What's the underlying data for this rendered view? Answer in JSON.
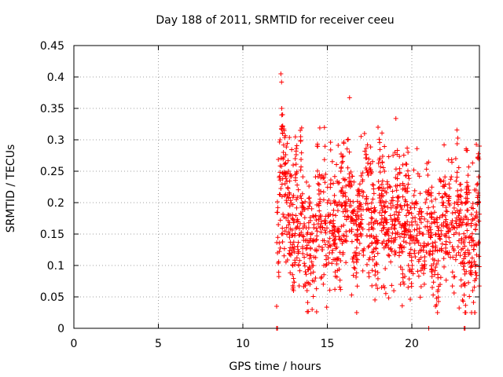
{
  "chart_data": {
    "type": "scatter",
    "title": "Day 188 of 2011, SRMTID for receiver ceeu",
    "xlabel": "GPS time / hours",
    "ylabel": "SRMTID / TECUs",
    "xlim": [
      0,
      24
    ],
    "ylim": [
      0,
      0.45
    ],
    "x_ticks": [
      0,
      5,
      10,
      15,
      20
    ],
    "x_tick_labels": [
      "0",
      "5",
      "10",
      "15",
      "20"
    ],
    "y_ticks": [
      0,
      0.05,
      0.1,
      0.15,
      0.2,
      0.25,
      0.3,
      0.35,
      0.4,
      0.45
    ],
    "y_tick_labels": [
      "0",
      "0.05",
      "0.1",
      "0.15",
      "0.2",
      "0.25",
      "0.3",
      "0.35",
      "0.4",
      "0.45"
    ],
    "grid": true,
    "marker": "+",
    "series": [
      {
        "name": "SRMTID",
        "color": "#ff0000",
        "time_range_hours": [
          12.0,
          24.0
        ],
        "approx_point_count": 1500,
        "x": [
          12.0,
          12.05,
          12.1,
          12.15,
          12.2,
          12.25,
          12.3,
          12.35,
          12.4,
          12.5,
          12.6,
          12.7,
          12.8,
          12.9,
          13.0,
          13.1,
          13.2,
          13.3,
          13.4,
          13.5,
          13.6,
          13.7,
          13.8,
          13.9,
          14.0,
          14.1,
          14.2,
          14.3,
          14.4,
          14.5,
          14.6,
          14.7,
          14.8,
          14.9,
          15.0,
          15.2,
          15.4,
          15.6,
          15.8,
          16.0,
          16.2,
          16.4,
          16.6,
          16.8,
          17.0,
          17.2,
          17.4,
          17.6,
          17.8,
          18.0,
          18.2,
          18.4,
          18.6,
          18.8,
          19.0,
          19.2,
          19.4,
          19.6,
          19.8,
          20.0,
          20.2,
          20.4,
          20.6,
          20.8,
          21.0,
          21.2,
          21.4,
          21.6,
          21.8,
          22.0,
          22.2,
          22.4,
          22.6,
          22.8,
          23.0,
          23.2,
          23.4,
          23.6,
          23.8,
          24.0
        ],
        "y": [
          0.035,
          0.12,
          0.165,
          0.24,
          0.3,
          0.405,
          0.35,
          0.31,
          0.28,
          0.23,
          0.2,
          0.25,
          0.18,
          0.12,
          0.06,
          0.27,
          0.16,
          0.1,
          0.315,
          0.2,
          0.14,
          0.09,
          0.06,
          0.16,
          0.095,
          0.03,
          0.16,
          0.08,
          0.29,
          0.22,
          0.18,
          0.16,
          0.24,
          0.1,
          0.2,
          0.17,
          0.14,
          0.155,
          0.25,
          0.2,
          0.3,
          0.17,
          0.12,
          0.22,
          0.18,
          0.31,
          0.19,
          0.16,
          0.1,
          0.32,
          0.21,
          0.15,
          0.14,
          0.16,
          0.28,
          0.18,
          0.13,
          0.22,
          0.1,
          0.14,
          0.17,
          0.12,
          0.1,
          0.2,
          0.15,
          0.09,
          0.035,
          0.16,
          0.2,
          0.17,
          0.21,
          0.13,
          0.27,
          0.15,
          0.045,
          0.2,
          0.12,
          0.06,
          0.22,
          0.29
        ]
      }
    ]
  }
}
